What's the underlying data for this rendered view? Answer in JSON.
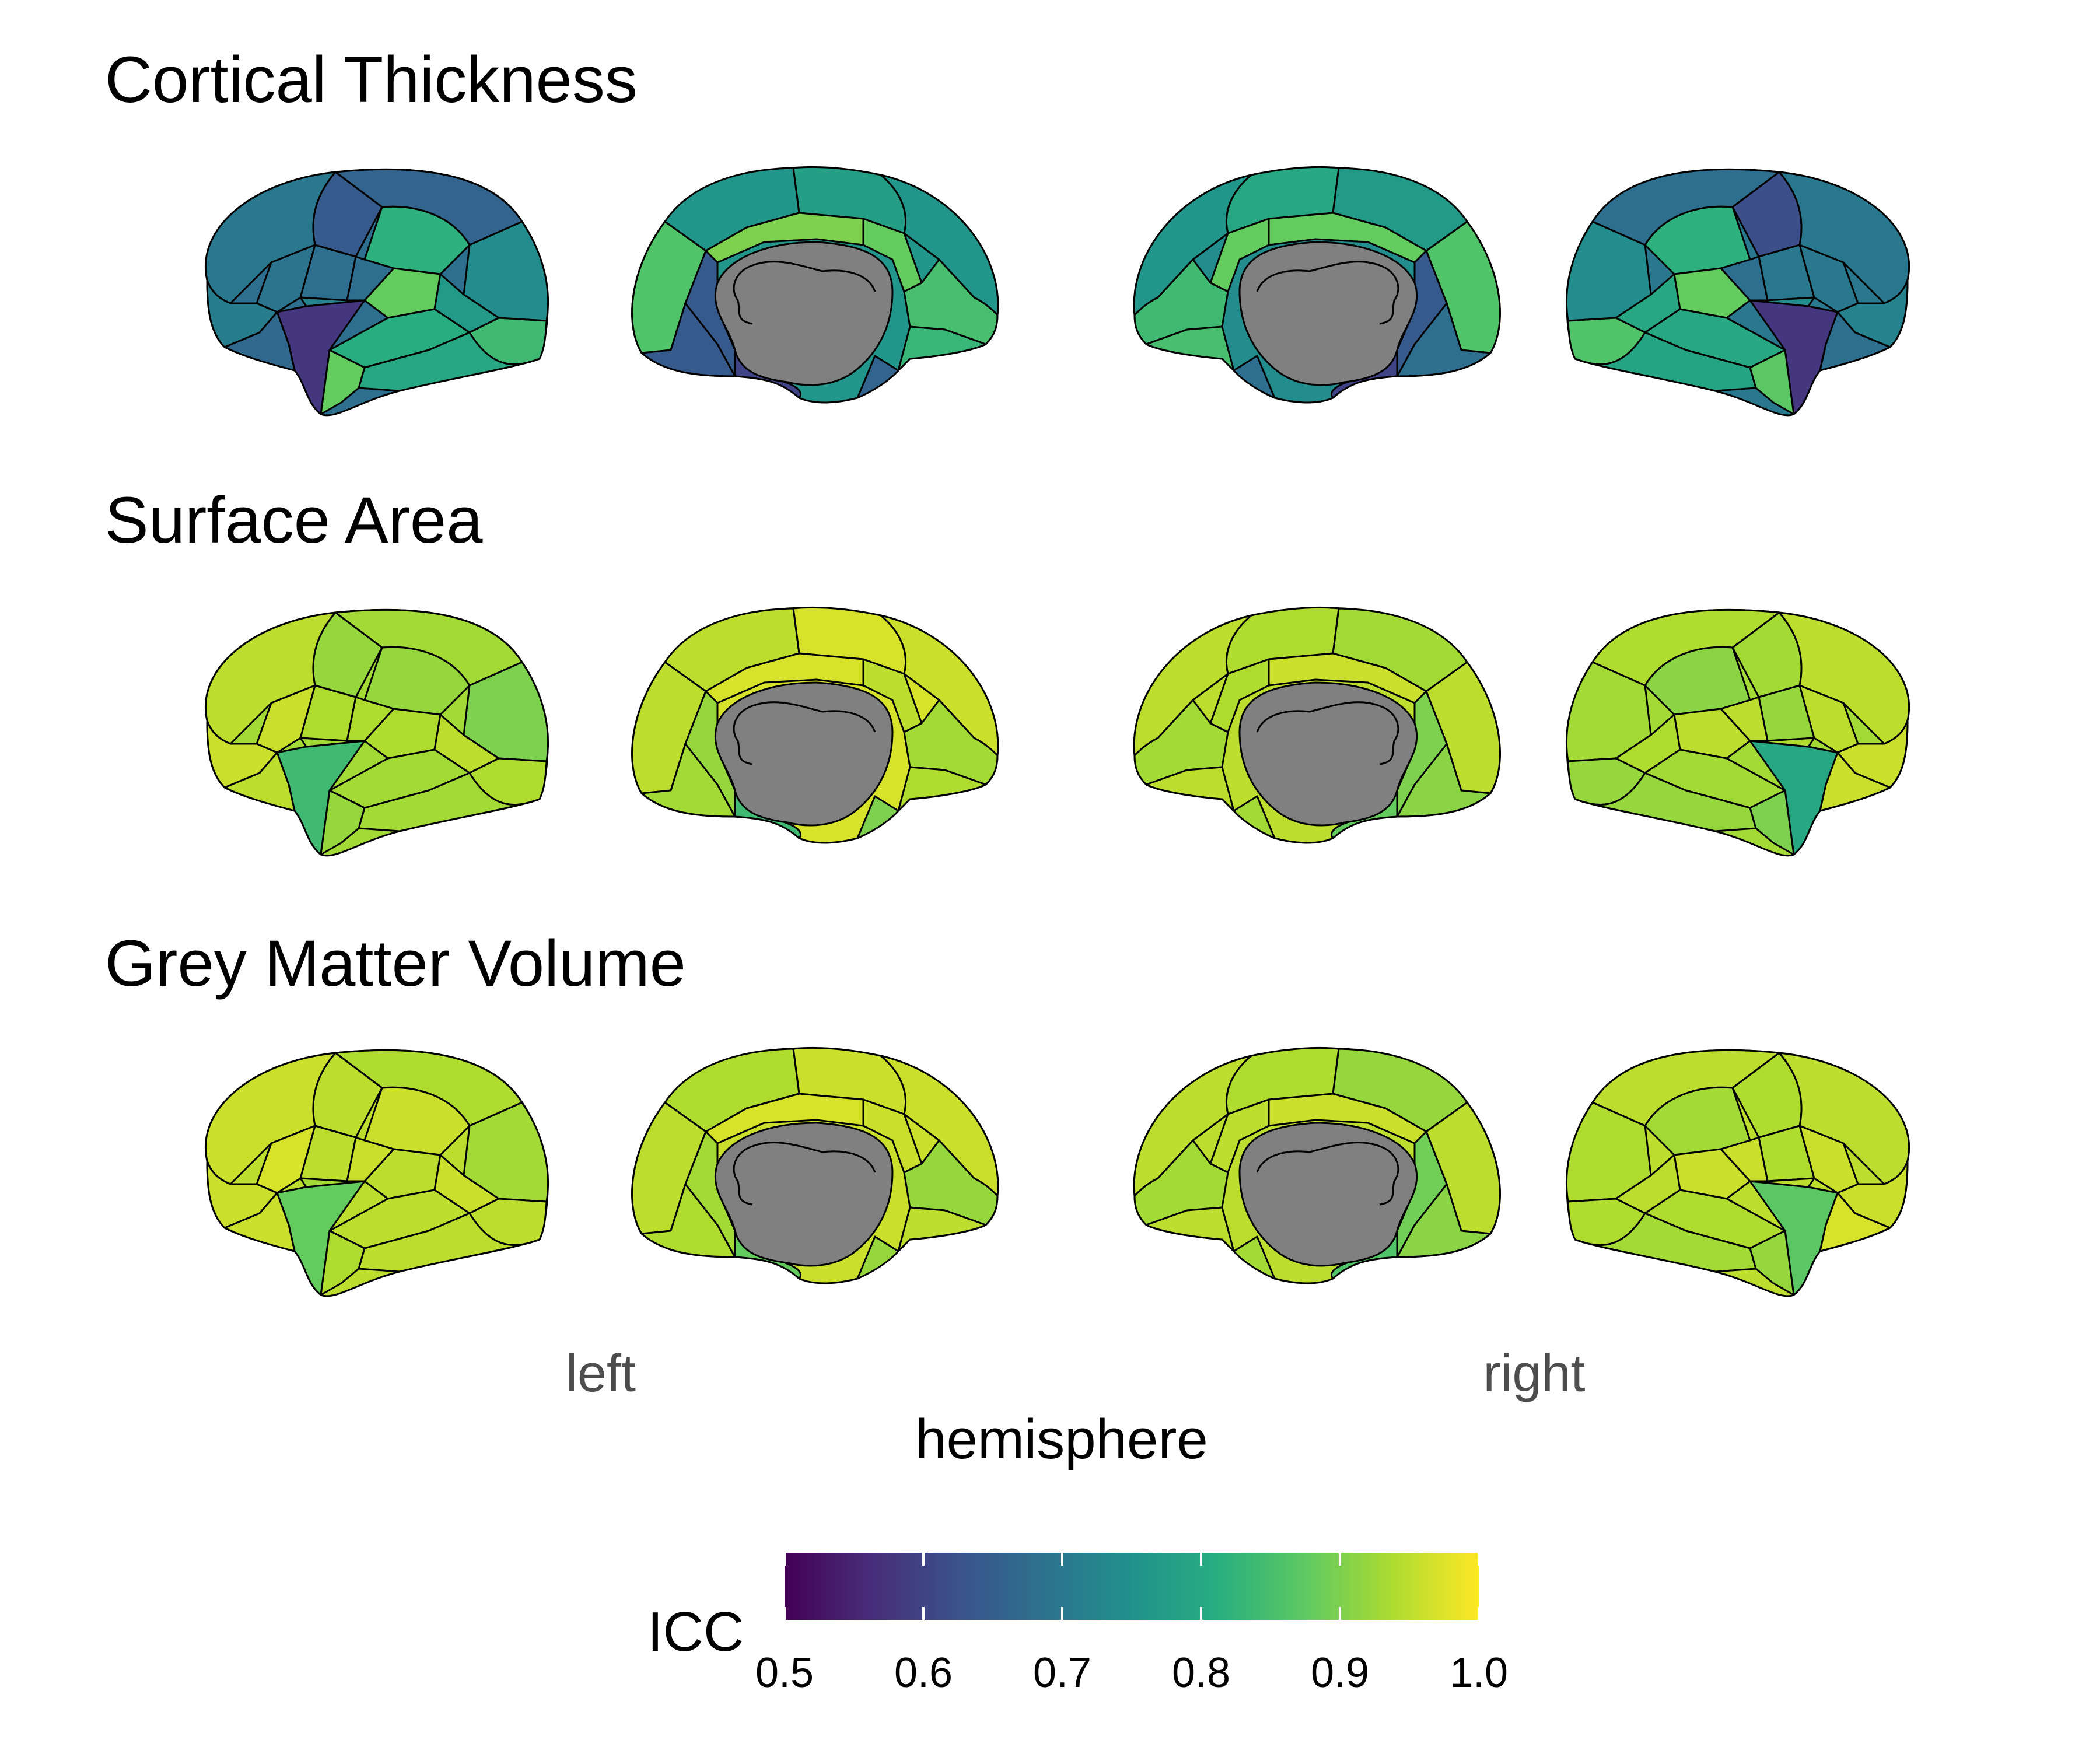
{
  "chart_data": {
    "type": "heatmap",
    "panels": [
      {
        "title": "Cortical Thickness",
        "views": {
          "left-lateral": {
            "outline": 0.68,
            "regions": [
              0.66,
              0.64,
              0.68,
              0.82,
              0.74,
              0.7,
              0.69,
              0.71,
              0.58,
              0.88,
              0.77,
              0.84,
              0.81,
              0.8,
              0.88,
              0.72,
              0.67,
              0.68
            ]
          },
          "left-medial": {
            "outline": 0.76,
            "regions": [
              0.78,
              0.76,
              0.76,
              0.9,
              0.88,
              0.86,
              0.85,
              0.83,
              0.64,
              0.64,
              0.6,
              0.66
            ]
          },
          "right-medial": {
            "outline": 0.74,
            "regions": [
              0.8,
              0.77,
              0.76,
              0.88,
              0.88,
              0.86,
              0.84,
              0.85,
              0.68,
              0.64,
              0.6,
              0.68
            ]
          },
          "right-lateral": {
            "outline": 0.7,
            "regions": [
              0.68,
              0.62,
              0.7,
              0.82,
              0.74,
              0.7,
              0.7,
              0.72,
              0.58,
              0.88,
              0.8,
              0.86,
              0.8,
              0.79,
              0.87,
              0.74,
              0.68,
              0.68
            ]
          }
        }
      },
      {
        "title": "Surface Area",
        "views": {
          "left-lateral": {
            "outline": 0.93,
            "regions": [
              0.93,
              0.92,
              0.94,
              0.92,
              0.9,
              0.95,
              0.96,
              0.96,
              0.84,
              0.94,
              0.95,
              0.94,
              0.93,
              0.93,
              0.92,
              0.93,
              0.95,
              0.94
            ]
          },
          "left-medial": {
            "outline": 0.97,
            "regions": [
              0.97,
              0.95,
              0.96,
              0.97,
              0.95,
              0.95,
              0.93,
              0.94,
              0.93,
              0.92,
              0.84,
              0.9
            ]
          },
          "right-medial": {
            "outline": 0.95,
            "regions": [
              0.94,
              0.93,
              0.95,
              0.96,
              0.94,
              0.95,
              0.93,
              0.95,
              0.91,
              0.9,
              0.88,
              0.93
            ]
          },
          "right-lateral": {
            "outline": 0.93,
            "regions": [
              0.94,
              0.93,
              0.92,
              0.91,
              0.93,
              0.95,
              0.95,
              0.96,
              0.8,
              0.95,
              0.94,
              0.92,
              0.93,
              0.92,
              0.9,
              0.94,
              0.96,
              0.95
            ]
          }
        }
      },
      {
        "title": "Grey Matter Volume",
        "views": {
          "left-lateral": {
            "outline": 0.95,
            "regions": [
              0.94,
              0.95,
              0.95,
              0.96,
              0.93,
              0.96,
              0.97,
              0.96,
              0.88,
              0.95,
              0.96,
              0.95,
              0.95,
              0.95,
              0.94,
              0.93,
              0.96,
              0.96
            ]
          },
          "left-medial": {
            "outline": 0.96,
            "regions": [
              0.96,
              0.94,
              0.96,
              0.97,
              0.96,
              0.95,
              0.92,
              0.95,
              0.94,
              0.93,
              0.88,
              0.92
            ]
          },
          "right-medial": {
            "outline": 0.95,
            "regions": [
              0.94,
              0.92,
              0.95,
              0.96,
              0.95,
              0.95,
              0.93,
              0.95,
              0.91,
              0.89,
              0.86,
              0.93
            ]
          },
          "right-lateral": {
            "outline": 0.95,
            "regions": [
              0.95,
              0.94,
              0.94,
              0.93,
              0.94,
              0.95,
              0.96,
              0.96,
              0.87,
              0.96,
              0.95,
              0.94,
              0.94,
              0.93,
              0.92,
              0.95,
              0.97,
              0.96
            ]
          }
        }
      }
    ],
    "hemisphere_labels": [
      "left",
      "right"
    ],
    "xlabel": "hemisphere",
    "legend": {
      "title": "ICC",
      "range": [
        0.5,
        1.0
      ],
      "ticks": [
        "0.5",
        "0.6",
        "0.7",
        "0.8",
        "0.9",
        "1.0"
      ],
      "placement": "bottom",
      "colormap": [
        "#440154",
        "#472d7b",
        "#3b528b",
        "#2c728e",
        "#21918c",
        "#28ae80",
        "#5ec962",
        "#addc30",
        "#fde725"
      ]
    }
  }
}
